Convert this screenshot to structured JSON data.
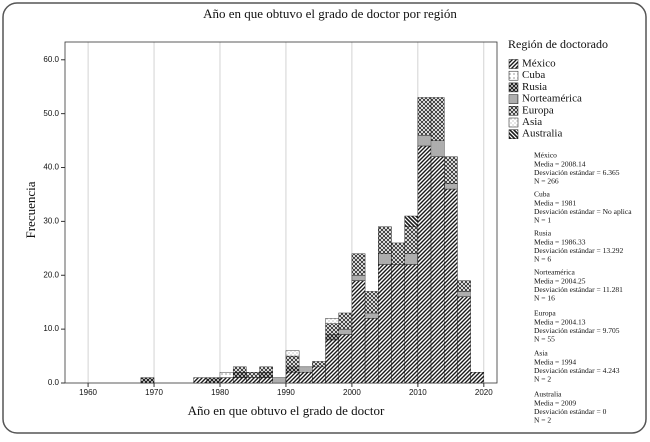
{
  "chart_data": {
    "type": "histogram",
    "title": "Año en que obtuvo el grado de doctor por región",
    "x_label": "Año en que obtuvo el grado de doctor",
    "y_label": "Frecuencia",
    "legend_title": "Región de doctorado",
    "bins": [
      1968,
      1970,
      1972,
      1974,
      1976,
      1978,
      1980,
      1982,
      1984,
      1986,
      1988,
      1990,
      1992,
      1994,
      1996,
      1998,
      2000,
      2002,
      2004,
      2006,
      2008,
      2010,
      2012,
      2014,
      2016,
      2018,
      2020
    ],
    "series": [
      {
        "name": "México",
        "color": "#1a1a1a",
        "values": [
          0,
          0,
          0,
          0,
          1,
          0,
          1,
          1,
          1,
          1,
          0,
          2,
          2,
          3,
          8,
          9,
          19,
          12,
          22,
          22,
          22,
          44,
          42,
          36,
          16,
          2
        ]
      },
      {
        "name": "Cuba",
        "color": "#555555",
        "values": [
          0,
          0,
          0,
          0,
          0,
          0,
          1,
          0,
          0,
          0,
          0,
          0,
          0,
          0,
          0,
          0,
          0,
          0,
          0,
          0,
          0,
          0,
          0,
          0,
          0,
          0
        ]
      },
      {
        "name": "Rusia",
        "color": "#222222",
        "values": [
          1,
          0,
          0,
          0,
          0,
          1,
          0,
          1,
          0,
          1,
          0,
          1,
          0,
          0,
          1,
          0,
          0,
          0,
          0,
          0,
          0,
          0,
          0,
          0,
          0,
          0
        ]
      },
      {
        "name": "Norteamérica",
        "color": "#333333",
        "values": [
          0,
          0,
          0,
          0,
          0,
          0,
          0,
          0,
          0,
          0,
          1,
          0,
          1,
          0,
          0,
          1,
          1,
          1,
          2,
          0,
          2,
          2,
          3,
          1,
          1,
          0
        ]
      },
      {
        "name": "Europa",
        "color": "#222222",
        "values": [
          0,
          0,
          0,
          0,
          0,
          0,
          0,
          1,
          1,
          1,
          0,
          2,
          0,
          1,
          2,
          3,
          4,
          4,
          5,
          4,
          5,
          7,
          8,
          5,
          2,
          0
        ]
      },
      {
        "name": "Asia",
        "color": "#777777",
        "values": [
          0,
          0,
          0,
          0,
          0,
          0,
          0,
          0,
          0,
          0,
          0,
          1,
          0,
          0,
          1,
          0,
          0,
          0,
          0,
          0,
          0,
          0,
          0,
          0,
          0,
          0
        ]
      },
      {
        "name": "Australia",
        "color": "#1a1a1a",
        "values": [
          0,
          0,
          0,
          0,
          0,
          0,
          0,
          0,
          0,
          0,
          0,
          0,
          0,
          0,
          0,
          0,
          0,
          0,
          0,
          0,
          2,
          0,
          0,
          0,
          0,
          0
        ]
      }
    ],
    "xlim": [
      1956.5,
      2022
    ],
    "xticks": [
      1960,
      1970,
      1980,
      1990,
      2000,
      2010,
      2020
    ],
    "ylim": [
      0,
      63.3
    ],
    "yticks": [
      {
        "value": 0,
        "label": "0.0"
      },
      {
        "value": 10,
        "label": "10.0"
      },
      {
        "value": 20,
        "label": "20.0"
      },
      {
        "value": 30,
        "label": "30.0"
      },
      {
        "value": 40,
        "label": "40.0"
      },
      {
        "value": 50,
        "label": "50.0"
      },
      {
        "value": 60,
        "label": "60.0"
      }
    ],
    "grid": true,
    "legend": "right",
    "annotations": [
      [
        "México",
        "Media = 2008.14",
        "Desviación estándar = 6.365",
        "N = 266"
      ],
      [
        "Cuba",
        "Media = 1981",
        "Desviación estándar = No aplica",
        "N = 1"
      ],
      [
        "Rusia",
        "Media = 1986.33",
        "Desviación estándar = 13.292",
        "N = 6"
      ],
      [
        "Norteamérica",
        "Media = 2004.25",
        "Desviación estándar = 11.281",
        "N = 16"
      ],
      [
        "Europa",
        "Media = 2004.13",
        "Desviación estándar = 9.705",
        "N = 55"
      ],
      [
        "Asia",
        "Media = 1994",
        "Desviación estándar = 4.243",
        "N = 2"
      ],
      [
        "Australia",
        "Media = 2009",
        "Desviación estándar = 0",
        "N = 2"
      ]
    ]
  }
}
